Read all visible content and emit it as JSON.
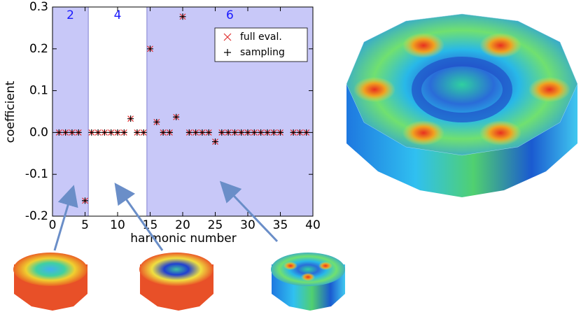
{
  "chart_data": {
    "type": "scatter",
    "xlabel": "harmonic number",
    "ylabel": "coefficient",
    "x": [
      1,
      2,
      3,
      4,
      5,
      6,
      7,
      8,
      9,
      10,
      11,
      12,
      13,
      14,
      15,
      16,
      17,
      18,
      19,
      20,
      21,
      22,
      23,
      24,
      25,
      26,
      27,
      28,
      29,
      30,
      31,
      32,
      33,
      34,
      35,
      37,
      38,
      39
    ],
    "series": [
      {
        "name": "full eval.",
        "color": "#e03030",
        "marker": "x",
        "values": [
          0,
          0,
          0,
          0,
          -0.163,
          0,
          0,
          0,
          0,
          0,
          0,
          0.033,
          0,
          0,
          0.2,
          0.025,
          0,
          0,
          0.037,
          0.277,
          0,
          0,
          0,
          0,
          -0.022,
          0,
          0,
          0,
          0,
          0,
          0,
          0,
          0,
          0,
          0,
          0,
          0,
          0
        ]
      },
      {
        "name": "sampling",
        "color": "#000000",
        "marker": "+",
        "values": [
          0,
          0,
          0,
          0,
          -0.163,
          0,
          0,
          0,
          0,
          0,
          0,
          0.033,
          0,
          0,
          0.2,
          0.025,
          0,
          0,
          0.037,
          0.277,
          0,
          0,
          0,
          0,
          -0.022,
          0,
          0,
          0,
          0,
          0,
          0,
          0,
          0,
          0,
          0,
          0,
          0,
          0
        ]
      }
    ],
    "regions": [
      {
        "label": "2",
        "range": [
          0,
          5.5
        ],
        "color": "#c8c8f8"
      },
      {
        "label": "4",
        "range": [
          5.5,
          14.5
        ],
        "color": "#ffffff"
      },
      {
        "label": "6",
        "range": [
          14.5,
          40
        ],
        "color": "#c8c8f8"
      }
    ],
    "xlim": [
      0,
      40
    ],
    "xticks": [
      0,
      5,
      10,
      15,
      20,
      25,
      30,
      35,
      40
    ],
    "ylim": [
      -0.2,
      0.3
    ],
    "yticks": [
      -0.2,
      -0.1,
      {
        "value": 0,
        "label": "0.0"
      },
      0.1,
      0.2,
      0.3
    ],
    "legend": "upper right"
  }
}
